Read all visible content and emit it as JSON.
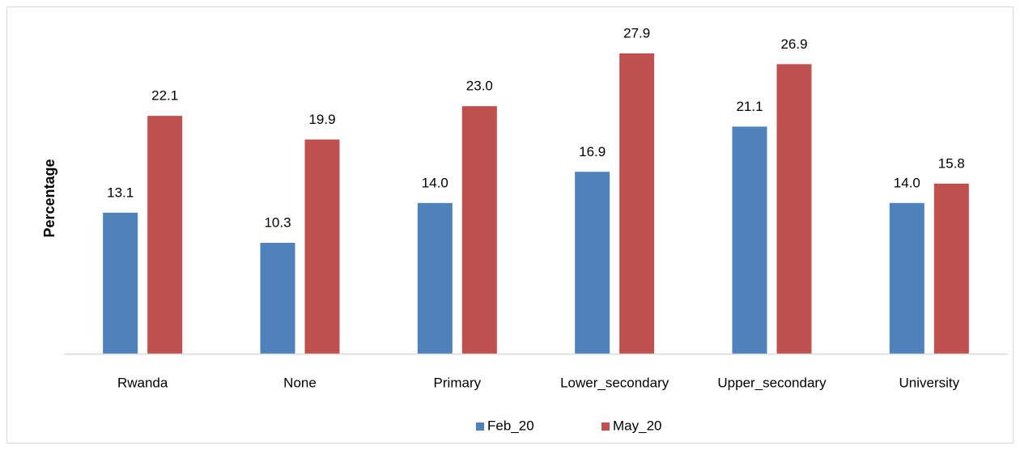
{
  "chart_data": {
    "type": "bar",
    "y_label": "Percentage",
    "categories": [
      "Rwanda",
      "None",
      "Primary",
      "Lower_secondary",
      "Upper_secondary",
      "University"
    ],
    "series": [
      {
        "name": "Feb_20",
        "color": "#4f81bd",
        "values": [
          13.1,
          10.3,
          14.0,
          16.9,
          21.1,
          14.0
        ],
        "value_labels": [
          "13.1",
          "10.3",
          "14.0",
          "16.9",
          "21.1",
          "14.0"
        ]
      },
      {
        "name": "May_20",
        "color": "#c0504d",
        "values": [
          22.1,
          19.9,
          23.0,
          27.9,
          26.9,
          15.8
        ],
        "value_labels": [
          "22.1",
          "19.9",
          "23.0",
          "27.9",
          "26.9",
          "15.8"
        ]
      }
    ],
    "legend": "bottom"
  }
}
